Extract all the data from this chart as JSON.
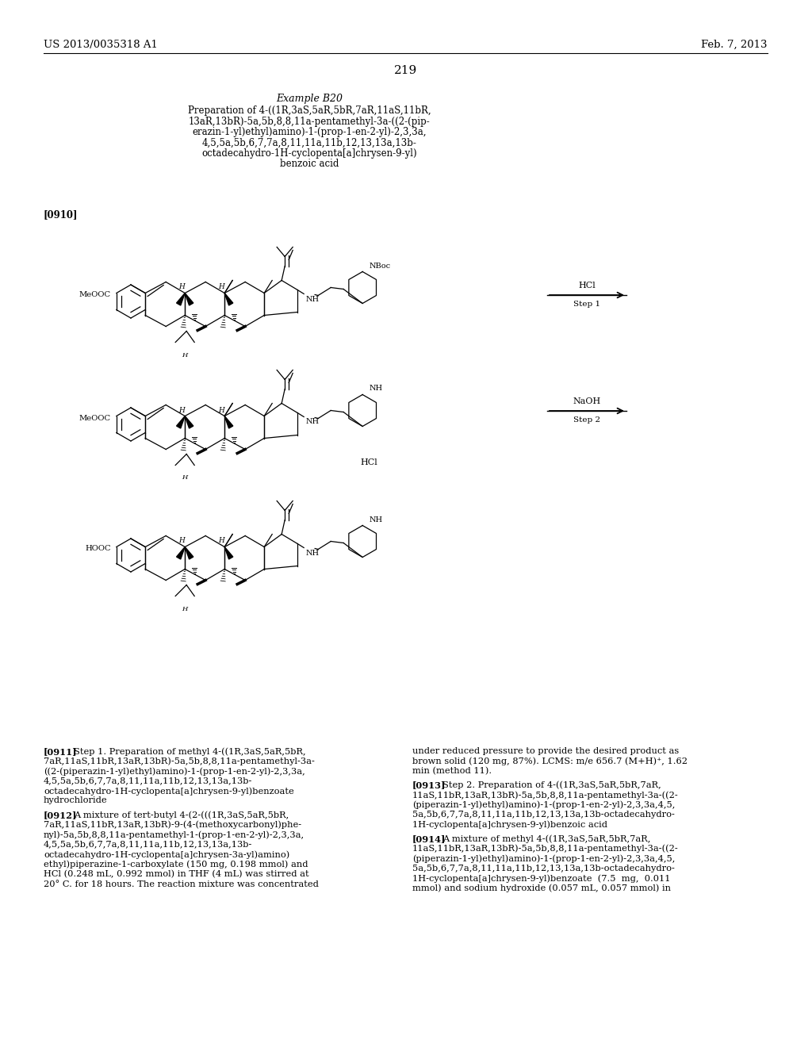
{
  "page_number": "219",
  "top_left": "US 2013/0035318 A1",
  "top_right": "Feb. 7, 2013",
  "example_title": "Example B20",
  "prep_line1": "Preparation of 4-((1R,3aS,5aR,5bR,7aR,11aS,11bR,",
  "prep_line2": "13aR,13bR)-5a,5b,8,8,11a-pentamethyl-3a-((2-(pip-",
  "prep_line3": "erazin-1-yl)ethyl)amino)-1-(prop-1-en-2-yl)-2,3,3a,",
  "prep_line4": "4,5,5a,5b,6,7,7a,8,11,11a,11b,12,13,13a,13b-",
  "prep_line5": "octadecahydro-1H-cyclopenta[a]chrysen-9-yl)",
  "prep_line6": "benzoic acid",
  "ref0910": "[0910]",
  "p0911_tag": "[0911]",
  "p0911_body": "   Step 1. Preparation of methyl 4-((1R,3aS,5aR,5bR,\n7aR,11aS,11bR,13aR,13bR)-5a,5b,8,8,11a-pentamethyl-3a-\n((2-(piperazin-1-yl)ethyl)amino)-1-(prop-1-en-2-yl)-2,3,3a,\n4,5,5a,5b,6,7,7a,8,11,11a,11b,12,13,13a,13b-\noctadecahydro-1H-cyclopenta[a]chrysen-9-yl)benzoate\nhydrochloride",
  "p0912_tag": "[0912]",
  "p0912_body": "   A mixture of tert-butyl 4-(2-(((1R,3aS,5aR,5bR,\n7aR,11aS,11bR,13aR,13bR)-9-(4-(methoxycarbonyl)phe-\nnyl)-5a,5b,8,8,11a-pentamethyl-1-(prop-1-en-2-yl)-2,3,3a,\n4,5,5a,5b,6,7,7a,8,11,11a,11b,12,13,13a,13b-\noctadecahydro-1H-cyclopenta[a]chrysen-3a-yl)amino)\nethyl)piperazine-1-carboxylate (150 mg, 0.198 mmol) and\nHCl (0.248 mL, 0.992 mmol) in THF (4 mL) was stirred at\n20° C. for 18 hours. The reaction mixture was concentrated",
  "right_col1": "under reduced pressure to provide the desired product as\nbrown solid (120 mg, 87%). LCMS: m/e 656.7 (M+H)⁺, 1.62\nmin (method 11).",
  "p0913_tag": "[0913]",
  "p0913_body": "   Step 2. Preparation of 4-((1R,3aS,5aR,5bR,7aR,\n11aS,11bR,13aR,13bR)-5a,5b,8,8,11a-pentamethyl-3a-((2-\n(piperazin-1-yl)ethyl)amino)-1-(prop-1-en-2-yl)-2,3,3a,4,5,\n5a,5b,6,7,7a,8,11,11a,11b,12,13,13a,13b-octadecahydro-\n1H-cyclopenta[a]chrysen-9-yl)benzoic acid",
  "p0914_tag": "[0914]",
  "p0914_body": "   A mixture of methyl 4-((1R,3aS,5aR,5bR,7aR,\n11aS,11bR,13aR,13bR)-5a,5b,8,8,11a-pentamethyl-3a-((2-\n(piperazin-1-yl)ethyl)amino)-1-(prop-1-en-2-yl)-2,3,3a,4,5,\n5a,5b,6,7,7a,8,11,11a,11b,12,13,13a,13b-octadecahydro-\n1H-cyclopenta[a]chrysen-9-yl)benzoate  (7.5  mg,  0.011\nmmol) and sodium hydroxide (0.057 mL, 0.057 mmol) in",
  "bg_color": "#ffffff"
}
